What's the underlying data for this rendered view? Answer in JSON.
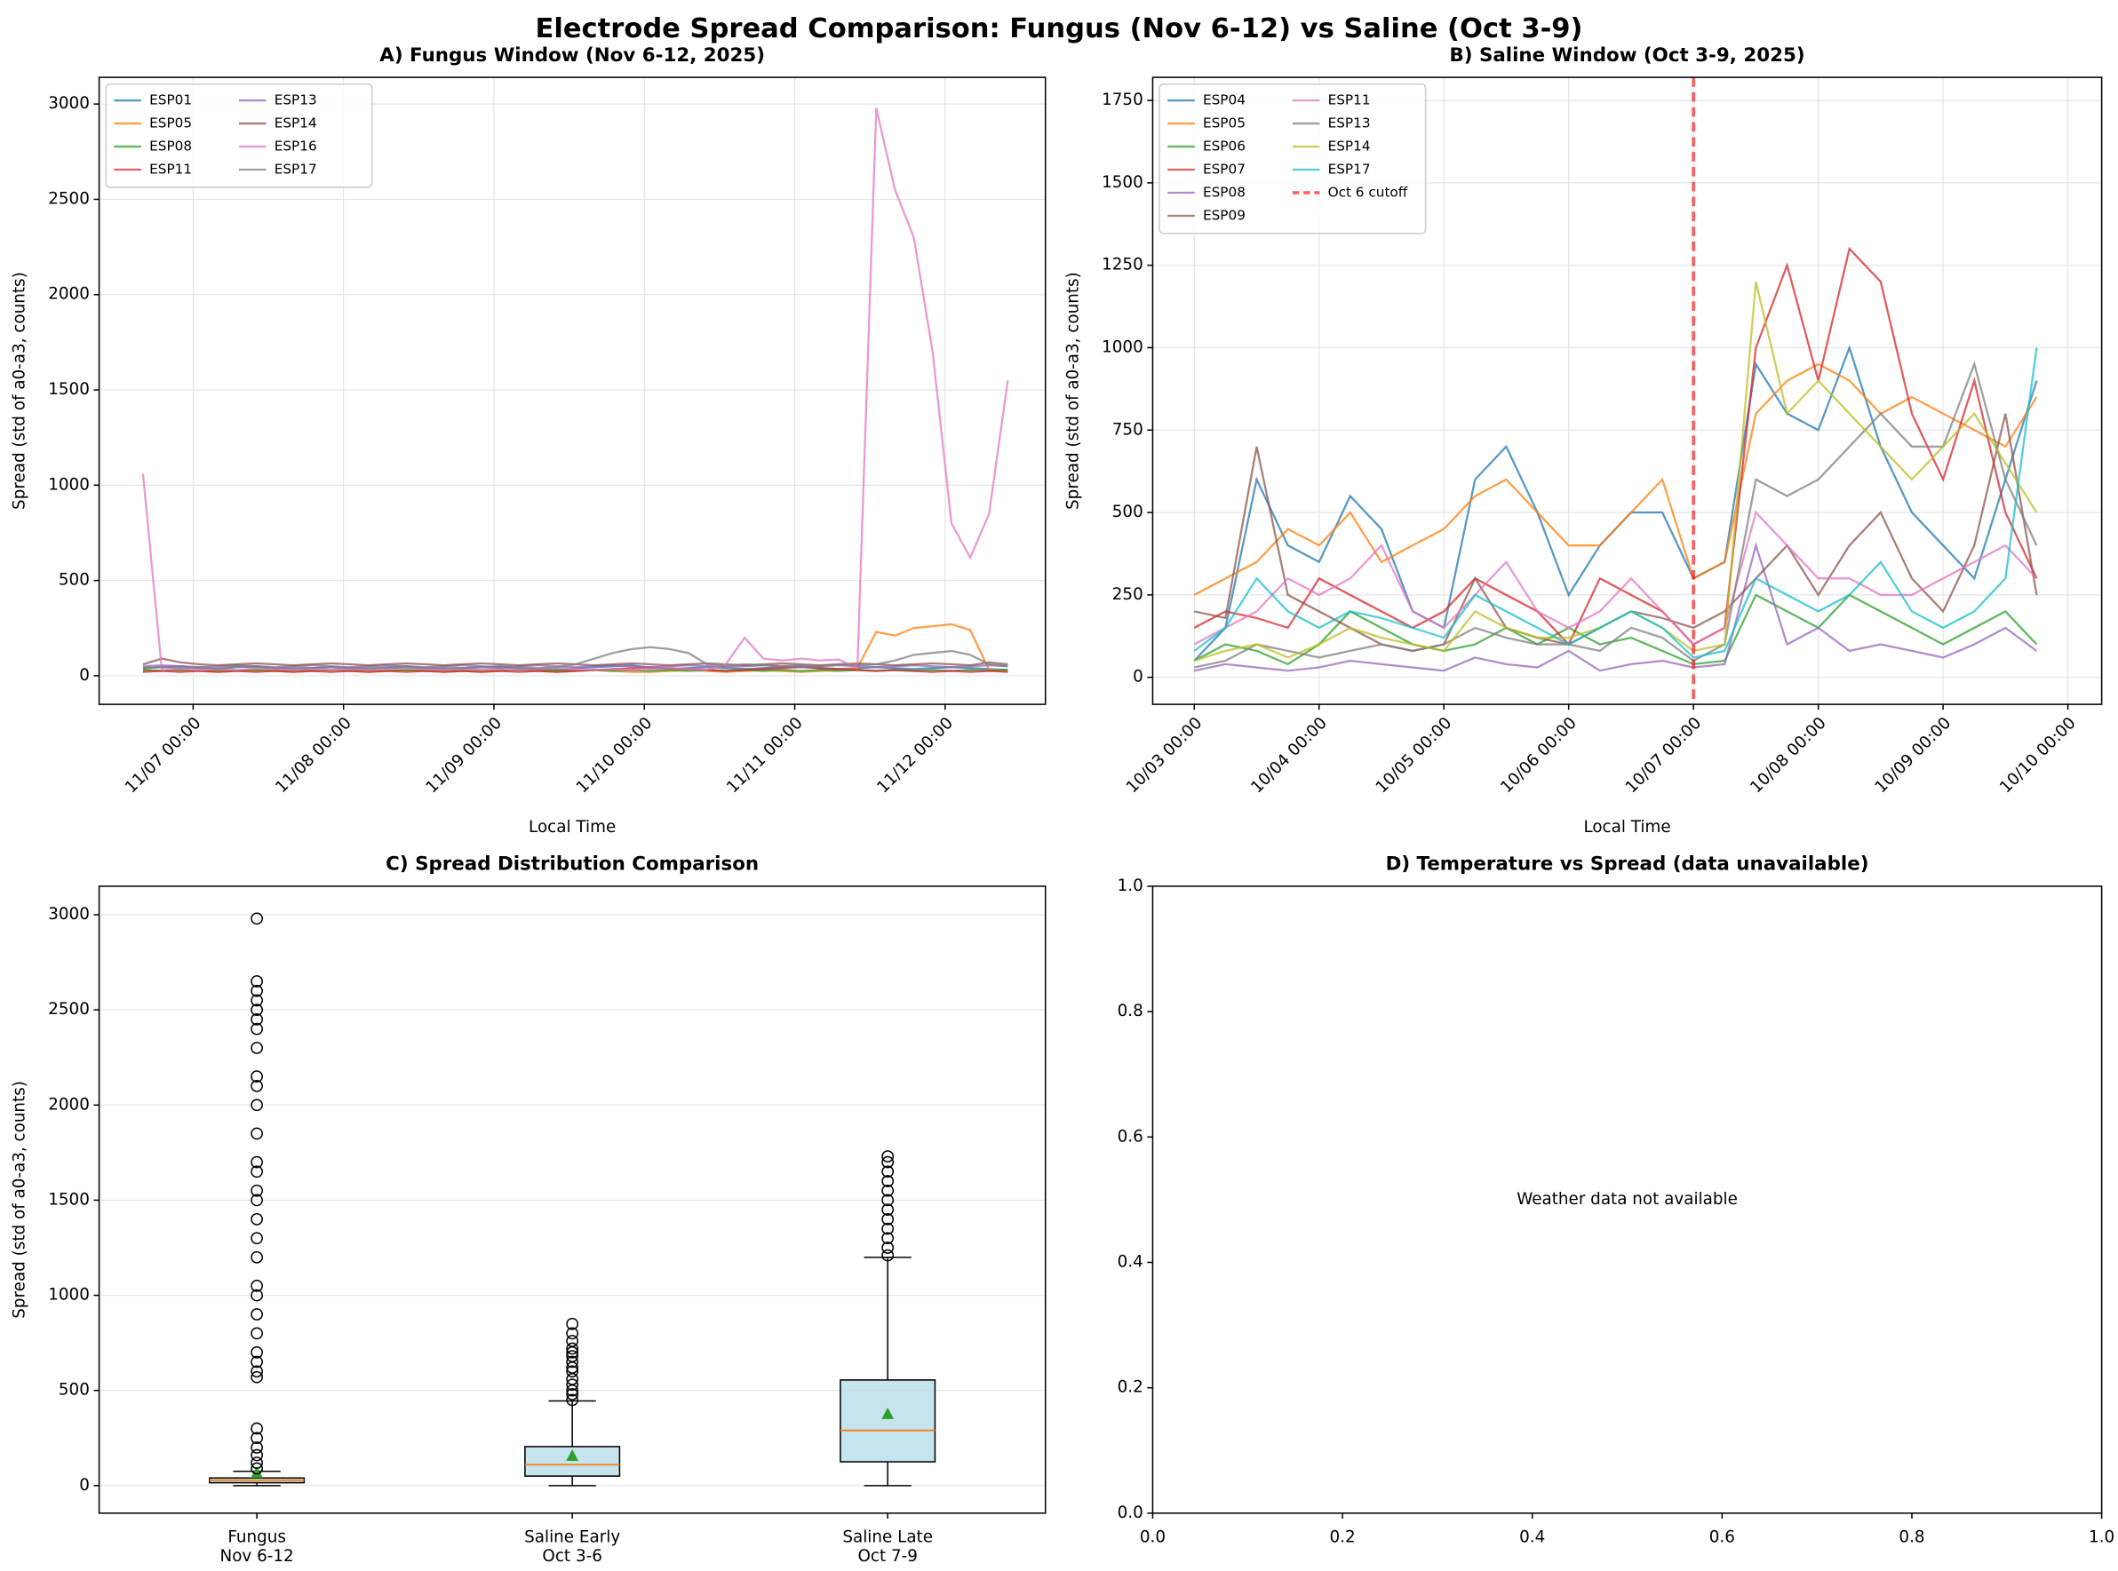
{
  "title": "Electrode Spread Comparison: Fungus (Nov 6-12) vs Saline (Oct 3-9)",
  "chart_data": [
    {
      "type": "line",
      "title": "A) Fungus Window (Nov 6-12, 2025)",
      "xlabel": "Local Time",
      "ylabel": "Spread (std of a0-a3, counts)",
      "x": [
        "11/06 16:00",
        "11/06 19:00",
        "11/06 22:00",
        "11/07 01:00",
        "11/07 04:00",
        "11/07 07:00",
        "11/07 10:00",
        "11/07 13:00",
        "11/07 16:00",
        "11/07 19:00",
        "11/07 22:00",
        "11/08 01:00",
        "11/08 04:00",
        "11/08 07:00",
        "11/08 10:00",
        "11/08 13:00",
        "11/08 16:00",
        "11/08 19:00",
        "11/08 22:00",
        "11/09 01:00",
        "11/09 04:00",
        "11/09 07:00",
        "11/09 10:00",
        "11/09 13:00",
        "11/09 16:00",
        "11/09 19:00",
        "11/09 22:00",
        "11/10 01:00",
        "11/10 04:00",
        "11/10 07:00",
        "11/10 10:00",
        "11/10 13:00",
        "11/10 16:00",
        "11/10 19:00",
        "11/10 22:00",
        "11/11 01:00",
        "11/11 04:00",
        "11/11 07:00",
        "11/11 10:00",
        "11/11 13:00",
        "11/11 16:00",
        "11/11 19:00",
        "11/11 22:00",
        "11/12 01:00",
        "11/12 04:00",
        "11/12 07:00",
        "11/12 10:00"
      ],
      "xlim": [
        "11/06 09:00",
        "11/12 16:00"
      ],
      "xticks": [
        "11/07 00:00",
        "11/08 00:00",
        "11/09 00:00",
        "11/10 00:00",
        "11/11 00:00",
        "11/12 00:00"
      ],
      "ylim": [
        -150,
        3140
      ],
      "yticks": [
        0,
        500,
        1000,
        1500,
        2000,
        2500,
        3000
      ],
      "grid": true,
      "legend": "upper left",
      "series": [
        {
          "name": "ESP01",
          "color": "#1f77b4",
          "values": [
            40,
            45,
            50,
            40,
            35,
            45,
            50,
            40,
            35,
            40,
            45,
            40,
            35,
            45,
            50,
            40,
            35,
            40,
            45,
            50,
            40,
            35,
            30,
            40,
            45,
            50,
            55,
            40,
            35,
            40,
            45,
            40,
            35,
            40,
            45,
            50,
            40,
            35,
            40,
            45,
            40,
            35,
            40,
            45,
            40,
            35,
            30
          ]
        },
        {
          "name": "ESP05",
          "color": "#ff7f0e",
          "values": [
            30,
            25,
            30,
            25,
            20,
            25,
            30,
            25,
            20,
            25,
            30,
            25,
            20,
            25,
            30,
            25,
            20,
            25,
            20,
            25,
            30,
            25,
            20,
            25,
            30,
            25,
            20,
            20,
            25,
            30,
            25,
            20,
            25,
            30,
            25,
            20,
            25,
            30,
            40,
            230,
            210,
            250,
            260,
            270,
            240,
            30,
            25
          ]
        },
        {
          "name": "ESP08",
          "color": "#2ca02c",
          "values": [
            30,
            25,
            30,
            25,
            30,
            25,
            30,
            25,
            30,
            25,
            30,
            25,
            30,
            25,
            30,
            25,
            30,
            25,
            30,
            25,
            30,
            25,
            30,
            25,
            30,
            25,
            30,
            25,
            30,
            25,
            30,
            25,
            30,
            25,
            30,
            25,
            30,
            25,
            30,
            25,
            30,
            25,
            30,
            25,
            30,
            25,
            30
          ]
        },
        {
          "name": "ESP11",
          "color": "#d62728",
          "values": [
            20,
            25,
            20,
            25,
            20,
            25,
            20,
            25,
            20,
            25,
            20,
            25,
            20,
            25,
            20,
            25,
            20,
            25,
            20,
            25,
            20,
            25,
            20,
            25,
            30,
            35,
            40,
            45,
            40,
            35,
            30,
            25,
            30,
            35,
            40,
            45,
            40,
            35,
            30,
            25,
            30,
            25,
            20,
            25,
            20,
            25,
            20
          ]
        },
        {
          "name": "ESP13",
          "color": "#9467bd",
          "values": [
            50,
            55,
            50,
            45,
            50,
            55,
            50,
            45,
            50,
            55,
            50,
            45,
            50,
            55,
            50,
            45,
            50,
            55,
            50,
            45,
            50,
            55,
            50,
            45,
            50,
            55,
            50,
            45,
            50,
            55,
            50,
            45,
            50,
            55,
            50,
            45,
            50,
            55,
            50,
            45,
            50,
            55,
            50,
            45,
            50,
            55,
            50
          ]
        },
        {
          "name": "ESP14",
          "color": "#8c564b",
          "values": [
            60,
            90,
            70,
            60,
            55,
            60,
            65,
            60,
            55,
            60,
            65,
            60,
            55,
            60,
            65,
            60,
            55,
            60,
            65,
            60,
            55,
            60,
            65,
            60,
            55,
            60,
            65,
            60,
            55,
            60,
            65,
            60,
            55,
            60,
            65,
            60,
            55,
            60,
            65,
            60,
            55,
            60,
            65,
            60,
            55,
            70,
            60
          ]
        },
        {
          "name": "ESP16",
          "color": "#e377c2",
          "values": [
            1060,
            30,
            35,
            30,
            35,
            30,
            40,
            35,
            30,
            35,
            30,
            35,
            30,
            35,
            40,
            35,
            30,
            35,
            30,
            35,
            30,
            35,
            40,
            35,
            30,
            35,
            30,
            35,
            40,
            35,
            30,
            60,
            200,
            90,
            80,
            90,
            80,
            85,
            40,
            2980,
            2550,
            2300,
            1700,
            800,
            620,
            850,
            1550
          ]
        },
        {
          "name": "ESP17",
          "color": "#7f7f7f",
          "values": [
            40,
            45,
            40,
            45,
            40,
            50,
            45,
            40,
            45,
            40,
            45,
            40,
            45,
            40,
            45,
            40,
            45,
            40,
            45,
            40,
            45,
            40,
            45,
            60,
            90,
            120,
            140,
            150,
            140,
            120,
            60,
            50,
            60,
            55,
            50,
            55,
            50,
            60,
            55,
            60,
            80,
            110,
            120,
            130,
            110,
            60,
            50
          ]
        }
      ]
    },
    {
      "type": "line",
      "title": "B) Saline Window (Oct 3-9, 2025)",
      "xlabel": "Local Time",
      "ylabel": "Spread (std of a0-a3, counts)",
      "x": [
        "10/03 00:00",
        "10/03 06:00",
        "10/03 12:00",
        "10/03 18:00",
        "10/04 00:00",
        "10/04 06:00",
        "10/04 12:00",
        "10/04 18:00",
        "10/05 00:00",
        "10/05 06:00",
        "10/05 12:00",
        "10/05 18:00",
        "10/06 00:00",
        "10/06 06:00",
        "10/06 12:00",
        "10/06 18:00",
        "10/07 00:00",
        "10/07 06:00",
        "10/07 12:00",
        "10/07 18:00",
        "10/08 00:00",
        "10/08 06:00",
        "10/08 12:00",
        "10/08 18:00",
        "10/09 00:00",
        "10/09 06:00",
        "10/09 12:00",
        "10/09 18:00"
      ],
      "xlim": [
        "10/02 16:00",
        "10/10 06:30"
      ],
      "xticks": [
        "10/03 00:00",
        "10/04 00:00",
        "10/05 00:00",
        "10/06 00:00",
        "10/07 00:00",
        "10/08 00:00",
        "10/09 00:00",
        "10/10 00:00"
      ],
      "ylim": [
        -82,
        1820
      ],
      "yticks": [
        0,
        250,
        500,
        750,
        1000,
        1250,
        1500,
        1750
      ],
      "grid": true,
      "legend": "upper left",
      "series": [
        {
          "name": "ESP04",
          "color": "#1f77b4",
          "values": [
            50,
            150,
            600,
            400,
            350,
            550,
            450,
            200,
            150,
            600,
            700,
            500,
            250,
            400,
            500,
            500,
            300,
            350,
            950,
            800,
            750,
            1000,
            700,
            500,
            400,
            300,
            600,
            900
          ]
        },
        {
          "name": "ESP05",
          "color": "#ff7f0e",
          "values": [
            250,
            300,
            350,
            450,
            400,
            500,
            350,
            400,
            450,
            550,
            600,
            500,
            400,
            400,
            500,
            600,
            300,
            350,
            800,
            900,
            950,
            900,
            800,
            850,
            800,
            750,
            700,
            850
          ]
        },
        {
          "name": "ESP06",
          "color": "#2ca02c",
          "values": [
            50,
            100,
            80,
            40,
            100,
            200,
            150,
            100,
            80,
            100,
            150,
            100,
            150,
            100,
            120,
            80,
            40,
            50,
            250,
            200,
            150,
            250,
            200,
            150,
            100,
            150,
            200,
            100
          ]
        },
        {
          "name": "ESP07",
          "color": "#d62728",
          "values": [
            150,
            200,
            180,
            150,
            300,
            250,
            200,
            150,
            200,
            300,
            250,
            200,
            100,
            300,
            250,
            200,
            100,
            150,
            1000,
            1250,
            900,
            1300,
            1200,
            800,
            600,
            900,
            500,
            300
          ]
        },
        {
          "name": "ESP08",
          "color": "#9467bd",
          "values": [
            20,
            40,
            30,
            20,
            30,
            50,
            40,
            30,
            20,
            60,
            40,
            30,
            80,
            20,
            40,
            50,
            30,
            40,
            400,
            100,
            150,
            80,
            100,
            80,
            60,
            100,
            150,
            80
          ]
        },
        {
          "name": "ESP09",
          "color": "#8c564b",
          "values": [
            200,
            180,
            700,
            250,
            200,
            150,
            100,
            80,
            100,
            300,
            150,
            120,
            100,
            150,
            200,
            180,
            150,
            200,
            300,
            400,
            250,
            400,
            500,
            300,
            200,
            400,
            800,
            250
          ]
        },
        {
          "name": "ESP11",
          "color": "#e377c2",
          "values": [
            100,
            150,
            200,
            300,
            250,
            300,
            400,
            200,
            150,
            250,
            350,
            200,
            150,
            200,
            300,
            200,
            100,
            150,
            500,
            400,
            300,
            300,
            250,
            250,
            300,
            350,
            400,
            300
          ]
        },
        {
          "name": "ESP13",
          "color": "#7f7f7f",
          "values": [
            30,
            50,
            100,
            80,
            60,
            80,
            100,
            80,
            100,
            150,
            120,
            100,
            100,
            80,
            150,
            120,
            50,
            100,
            600,
            550,
            600,
            700,
            800,
            700,
            700,
            950,
            600,
            400
          ]
        },
        {
          "name": "ESP14",
          "color": "#bcbd22",
          "values": [
            50,
            80,
            100,
            60,
            100,
            150,
            120,
            100,
            80,
            200,
            150,
            120,
            120,
            150,
            200,
            150,
            80,
            100,
            1200,
            800,
            900,
            800,
            700,
            600,
            700,
            800,
            650,
            500
          ]
        },
        {
          "name": "ESP17",
          "color": "#17becf",
          "values": [
            80,
            150,
            300,
            200,
            150,
            200,
            180,
            150,
            120,
            250,
            200,
            150,
            100,
            150,
            200,
            150,
            60,
            80,
            300,
            250,
            200,
            250,
            350,
            200,
            150,
            200,
            300,
            1000
          ]
        }
      ],
      "vlines": [
        {
          "x": "10/07 00:00",
          "name": "Oct 6 cutoff",
          "color": "#ff0000"
        }
      ]
    },
    {
      "type": "box",
      "title": "C) Spread Distribution Comparison",
      "ylabel": "Spread (std of a0-a3, counts)",
      "categories": [
        [
          "Fungus",
          "Nov 6-12"
        ],
        [
          "Saline Early",
          "Oct 3-6"
        ],
        [
          "Saline Late",
          "Oct 7-9"
        ]
      ],
      "ylim": [
        -145,
        3150
      ],
      "yticks": [
        0,
        500,
        1000,
        1500,
        2000,
        2500,
        3000
      ],
      "grid": true,
      "color": "#add8e6",
      "boxes": [
        {
          "whislo": 0,
          "q1": 15,
          "med": 28,
          "q3": 40,
          "whishi": 75,
          "mean": 65,
          "fliers": [
            90,
            120,
            160,
            200,
            250,
            300,
            570,
            600,
            650,
            700,
            800,
            900,
            1000,
            1050,
            1200,
            1300,
            1400,
            1500,
            1550,
            1650,
            1700,
            1850,
            2000,
            2100,
            2150,
            2300,
            2400,
            2450,
            2500,
            2550,
            2600,
            2650,
            2980
          ]
        },
        {
          "whislo": 0,
          "q1": 50,
          "med": 110,
          "q3": 205,
          "whishi": 445,
          "mean": 155,
          "fliers": [
            450,
            480,
            500,
            530,
            560,
            600,
            620,
            650,
            680,
            700,
            720,
            760,
            800,
            850
          ]
        },
        {
          "whislo": 0,
          "q1": 125,
          "med": 290,
          "q3": 555,
          "whishi": 1200,
          "mean": 375,
          "fliers": [
            1210,
            1250,
            1300,
            1350,
            1400,
            1450,
            1500,
            1550,
            1600,
            1650,
            1700,
            1730
          ]
        }
      ]
    },
    {
      "type": "empty",
      "title": "D) Temperature vs Spread (data unavailable)",
      "annotation": "Weather data not available",
      "xlim": [
        0,
        1
      ],
      "ylim": [
        0,
        1
      ],
      "xticks": [
        {
          "value": 0,
          "label": "0.0"
        },
        {
          "value": 0.2,
          "label": "0.2"
        },
        {
          "value": 0.4,
          "label": "0.4"
        },
        {
          "value": 0.6,
          "label": "0.6"
        },
        {
          "value": 0.8,
          "label": "0.8"
        },
        {
          "value": 1,
          "label": "1.0"
        }
      ],
      "yticks": [
        {
          "value": 0,
          "label": "0.0"
        },
        {
          "value": 0.2,
          "label": "0.2"
        },
        {
          "value": 0.4,
          "label": "0.4"
        },
        {
          "value": 0.6,
          "label": "0.6"
        },
        {
          "value": 0.8,
          "label": "0.8"
        },
        {
          "value": 1,
          "label": "1.0"
        }
      ]
    }
  ]
}
